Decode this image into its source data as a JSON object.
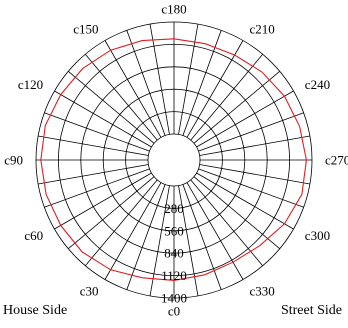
{
  "chart_data": {
    "type": "polar-line",
    "angle_labels": [
      "c0",
      "c30",
      "c60",
      "c90",
      "c120",
      "c150",
      "c180",
      "c210",
      "c240",
      "c270",
      "c300",
      "c330"
    ],
    "angle_values": [
      0,
      30,
      60,
      90,
      120,
      150,
      180,
      210,
      240,
      270,
      300,
      330
    ],
    "radial_ticks": [
      280,
      560,
      840,
      1120,
      1400
    ],
    "radial_range": [
      0,
      1400
    ],
    "spoke_step_deg": 10,
    "grid": true,
    "series": [
      {
        "color": "#e02020",
        "points": [
          {
            "angle": 0,
            "value": 1180
          },
          {
            "angle": 15,
            "value": 1200
          },
          {
            "angle": 30,
            "value": 1260
          },
          {
            "angle": 45,
            "value": 1300
          },
          {
            "angle": 60,
            "value": 1310
          },
          {
            "angle": 75,
            "value": 1330
          },
          {
            "angle": 90,
            "value": 1340
          },
          {
            "angle": 105,
            "value": 1340
          },
          {
            "angle": 120,
            "value": 1310
          },
          {
            "angle": 135,
            "value": 1290
          },
          {
            "angle": 150,
            "value": 1260
          },
          {
            "angle": 165,
            "value": 1220
          },
          {
            "angle": 180,
            "value": 1190
          },
          {
            "angle": 195,
            "value": 1180
          },
          {
            "angle": 210,
            "value": 1190
          },
          {
            "angle": 225,
            "value": 1230
          },
          {
            "angle": 240,
            "value": 1270
          },
          {
            "angle": 255,
            "value": 1300
          },
          {
            "angle": 270,
            "value": 1330
          },
          {
            "angle": 285,
            "value": 1330
          },
          {
            "angle": 300,
            "value": 1270
          },
          {
            "angle": 315,
            "value": 1190
          },
          {
            "angle": 330,
            "value": 1150
          },
          {
            "angle": 345,
            "value": 1160
          },
          {
            "angle": 360,
            "value": 1180
          }
        ]
      }
    ]
  },
  "footer": {
    "left": "House Side",
    "right": "Street Side"
  }
}
